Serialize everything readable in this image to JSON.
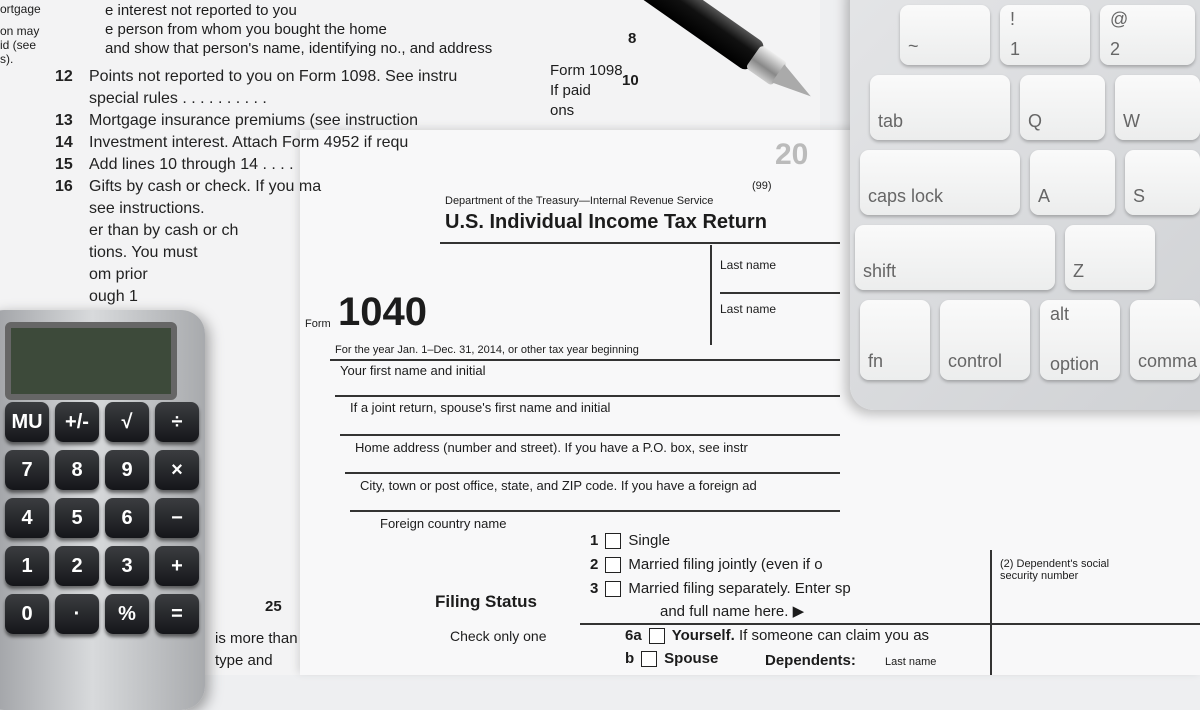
{
  "back_form": {
    "margin_text": [
      "ortgage",
      "on may",
      "id (see",
      "s)."
    ],
    "top_lines": [
      "e interest not reported to you",
      "e person from whom you bought the home",
      "and show that person's name, identifying no., and address"
    ],
    "lines": [
      {
        "num": "12",
        "text": "Points not reported to you on Form 1098. See instru"
      },
      {
        "num": "",
        "text": "special rules . . . . . . . . . ."
      },
      {
        "num": "13",
        "text": "Mortgage insurance premiums (see instruction"
      },
      {
        "num": "14",
        "text": "Investment interest. Attach Form 4952 if requ"
      },
      {
        "num": "15",
        "text": "Add lines 10 through 14 . . . ."
      },
      {
        "num": "16",
        "text": "Gifts by cash or check. If you ma"
      },
      {
        "num": "",
        "text": "see instructions."
      },
      {
        "num": "",
        "text": "er than by cash or ch"
      },
      {
        "num": "",
        "text": "tions. You must"
      },
      {
        "num": "",
        "text": "om prior"
      },
      {
        "num": "",
        "text": "ough 1"
      }
    ],
    "right_labels": [
      "Form 1098",
      "If paid",
      "ons"
    ],
    "box_numbers": [
      "8",
      "10"
    ],
    "bottom_lines": [
      "is more than",
      "type and"
    ],
    "bottom_num": "25"
  },
  "form": {
    "form_label": "Form",
    "number": "1040",
    "department": "Department of the Treasury—Internal Revenue Service",
    "omb": "(99)",
    "title": "U.S. Individual Income Tax Return",
    "year_partial": "20",
    "tax_year": "For the year Jan. 1–Dec. 31, 2014, or other tax year beginning",
    "fields": [
      "Your first name and initial",
      "If a joint return, spouse's first name and initial",
      "Home address (number and street). If you have a P.O. box, see instr",
      "City, town or post office, state, and ZIP code. If you have a foreign ad",
      "Foreign country name"
    ],
    "last_name_1": "Last name",
    "last_name_2": "Last name",
    "filing_status": "Filing Status",
    "check_only_one": "Check only one",
    "options": [
      {
        "num": "1",
        "label": "Single"
      },
      {
        "num": "2",
        "label": "Married filing jointly (even if o"
      },
      {
        "num": "3",
        "label": "Married filing separately. Enter sp"
      }
    ],
    "option3_cont": "and full name here. ▶",
    "exemptions": [
      {
        "num": "6a",
        "label": "Yourself.",
        "rest": "If someone can claim you as"
      },
      {
        "num": "b",
        "label": "Spouse",
        "rest": ""
      }
    ],
    "dependents": "Dependents:",
    "dep_last_name": "Last name",
    "dep_ssn": "(2) Dependent's social security number"
  },
  "keyboard": {
    "keys": [
      "~",
      "!",
      "1",
      "@",
      "2",
      "tab",
      "Q",
      "W",
      "caps lock",
      "A",
      "S",
      "shift",
      "Z",
      "fn",
      "control",
      "alt",
      "option",
      "comma"
    ]
  },
  "calculator": {
    "buttons": [
      "+/-",
      "√",
      "÷",
      "%",
      "×",
      "9",
      "−",
      "8",
      "6",
      "5",
      "3",
      "+",
      "2",
      "=",
      "4",
      "1",
      "·",
      "0",
      "MU",
      "7"
    ]
  }
}
